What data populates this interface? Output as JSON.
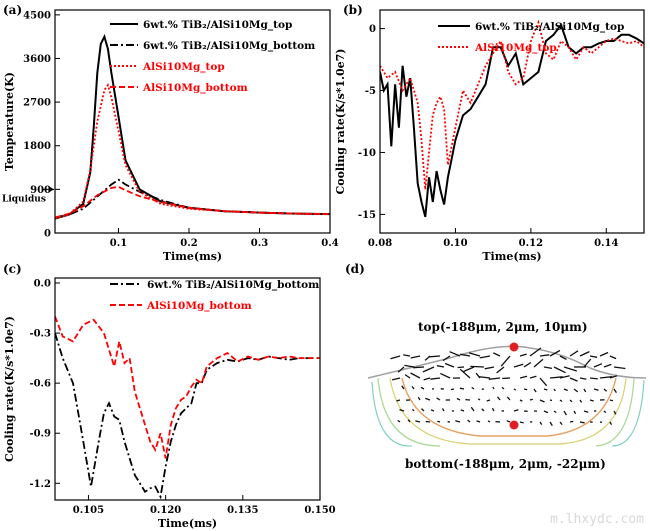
{
  "watermark": "m.lhxydc.com",
  "chart_data": [
    {
      "panel": "(a)",
      "type": "line",
      "xlabel": "Time(ms)",
      "ylabel": "Temperature(K)",
      "xlim": [
        0.01,
        0.4
      ],
      "ylim": [
        0,
        4600
      ],
      "xticks": [
        "0.1",
        "0.2",
        "0.3",
        "0.4"
      ],
      "yticks": [
        "0",
        "900",
        "1800",
        "2700",
        "3600",
        "4500"
      ],
      "annotation": "Liquidus",
      "annotation_value": 900,
      "legend_position": "top-right",
      "series": [
        {
          "name": "6wt.% TiB₂/AlSi10Mg_top",
          "color": "#000000",
          "dash": "solid",
          "x": [
            0.01,
            0.03,
            0.05,
            0.06,
            0.065,
            0.07,
            0.075,
            0.08,
            0.085,
            0.09,
            0.1,
            0.11,
            0.13,
            0.16,
            0.2,
            0.25,
            0.3,
            0.35,
            0.4
          ],
          "y": [
            300,
            380,
            600,
            1250,
            2200,
            3300,
            3900,
            4050,
            3800,
            3300,
            2400,
            1500,
            900,
            650,
            520,
            450,
            420,
            400,
            390
          ]
        },
        {
          "name": "6wt.% TiB₂/AlSi10Mg_bottom",
          "color": "#000000",
          "dash": "dashdot",
          "x": [
            0.01,
            0.03,
            0.05,
            0.07,
            0.09,
            0.1,
            0.11,
            0.13,
            0.16,
            0.2,
            0.25,
            0.3,
            0.35,
            0.4
          ],
          "y": [
            320,
            380,
            500,
            750,
            1000,
            1100,
            1000,
            850,
            680,
            520,
            450,
            420,
            400,
            390
          ]
        },
        {
          "name": "AlSi10Mg_top",
          "color": "#ff0000",
          "dash": "dotted",
          "x": [
            0.01,
            0.03,
            0.05,
            0.06,
            0.07,
            0.08,
            0.085,
            0.09,
            0.1,
            0.11,
            0.13,
            0.16,
            0.2,
            0.25,
            0.3,
            0.35,
            0.4
          ],
          "y": [
            300,
            380,
            650,
            1300,
            2300,
            2950,
            3050,
            2800,
            2100,
            1400,
            850,
            600,
            500,
            450,
            420,
            400,
            390
          ]
        },
        {
          "name": "AlSi10Mg_bottom",
          "color": "#ff0000",
          "dash": "dashed",
          "x": [
            0.01,
            0.03,
            0.05,
            0.07,
            0.09,
            0.1,
            0.11,
            0.13,
            0.16,
            0.2,
            0.25,
            0.3,
            0.35,
            0.4
          ],
          "y": [
            320,
            400,
            550,
            780,
            930,
            950,
            880,
            760,
            640,
            520,
            450,
            420,
            400,
            390
          ]
        }
      ]
    },
    {
      "panel": "(b)",
      "type": "line",
      "xlabel": "Time(ms)",
      "ylabel": "Cooling rate(K/s*1.0e7)",
      "xlim": [
        0.08,
        0.15
      ],
      "ylim": [
        -16.5,
        1.5
      ],
      "xticks": [
        "0.08",
        "0.10",
        "0.12",
        "0.14"
      ],
      "yticks": [
        "-15",
        "-10",
        "-5",
        "0"
      ],
      "legend_position": "top-right",
      "series": [
        {
          "name": "6wt.% TiB₂/AlSi10Mg_top",
          "color": "#000000",
          "dash": "solid",
          "x": [
            0.08,
            0.081,
            0.082,
            0.083,
            0.084,
            0.085,
            0.086,
            0.087,
            0.088,
            0.089,
            0.09,
            0.091,
            0.092,
            0.093,
            0.094,
            0.095,
            0.096,
            0.097,
            0.098,
            0.099,
            0.1,
            0.102,
            0.104,
            0.106,
            0.108,
            0.11,
            0.112,
            0.114,
            0.116,
            0.118,
            0.12,
            0.122,
            0.124,
            0.126,
            0.128,
            0.13,
            0.132,
            0.134,
            0.136,
            0.138,
            0.14,
            0.142,
            0.144,
            0.146,
            0.148,
            0.15
          ],
          "y": [
            -3.5,
            -5,
            -4.5,
            -9.5,
            -4.5,
            -8,
            -3,
            -5.5,
            -4,
            -8,
            -12.5,
            -14,
            -15.2,
            -12,
            -14,
            -11.5,
            -13,
            -14.2,
            -12,
            -10.5,
            -9,
            -7,
            -6.5,
            -5.5,
            -4.5,
            -1.5,
            -1.5,
            -3,
            -2,
            -4.5,
            -4,
            -3.5,
            -1,
            -0.5,
            0.3,
            -1.5,
            -2,
            -1.5,
            -1.5,
            -1.2,
            -1,
            -1,
            -0.5,
            -0.5,
            -0.8,
            -1.2
          ]
        },
        {
          "name": "AlSi10Mg_top",
          "color": "#ff0000",
          "dash": "dotted",
          "x": [
            0.08,
            0.082,
            0.084,
            0.086,
            0.088,
            0.09,
            0.091,
            0.092,
            0.093,
            0.094,
            0.095,
            0.096,
            0.097,
            0.098,
            0.1,
            0.102,
            0.104,
            0.106,
            0.108,
            0.11,
            0.112,
            0.114,
            0.116,
            0.118,
            0.12,
            0.122,
            0.124,
            0.126,
            0.128,
            0.13,
            0.132,
            0.134,
            0.136,
            0.138,
            0.14,
            0.142,
            0.144,
            0.146,
            0.148,
            0.15
          ],
          "y": [
            -3,
            -4,
            -3.5,
            -5,
            -4,
            -6,
            -9,
            -13,
            -10,
            -7,
            -6,
            -5.5,
            -6.5,
            -11,
            -8,
            -5,
            -6,
            -4.5,
            -3,
            -2,
            -1,
            -3.5,
            -4.5,
            -4,
            -1,
            0.5,
            -2,
            -2.5,
            -1,
            -1.5,
            -2.5,
            -1.5,
            -2,
            -1.5,
            -1,
            -0.8,
            -1,
            -1.2,
            -1,
            -1.5
          ]
        }
      ]
    },
    {
      "panel": "(c)",
      "type": "line",
      "xlabel": "Time(ms)",
      "ylabel": "Cooling rate(K/s*1.0e7)",
      "xlim": [
        0.0985,
        0.15
      ],
      "ylim": [
        -1.3,
        0.03
      ],
      "xticks": [
        "0.105",
        "0.120",
        "0.135",
        "0.150"
      ],
      "yticks": [
        "0.0",
        "-0.3",
        "-0.6",
        "-0.9",
        "-1.2"
      ],
      "legend_position": "top-right",
      "series": [
        {
          "name": "6wt.% TiB₂/AlSi10Mg_bottom",
          "color": "#000000",
          "dash": "dashdot",
          "x": [
            0.0985,
            0.1,
            0.102,
            0.104,
            0.1055,
            0.107,
            0.108,
            0.109,
            0.11,
            0.111,
            0.112,
            0.113,
            0.114,
            0.115,
            0.116,
            0.117,
            0.118,
            0.119,
            0.12,
            0.121,
            0.122,
            0.123,
            0.124,
            0.125,
            0.126,
            0.127,
            0.128,
            0.129,
            0.13,
            0.132,
            0.134,
            0.136,
            0.138,
            0.14,
            0.142,
            0.144,
            0.146,
            0.148,
            0.15
          ],
          "y": [
            -0.3,
            -0.45,
            -0.6,
            -0.95,
            -1.22,
            -0.95,
            -0.78,
            -0.72,
            -0.8,
            -0.82,
            -0.95,
            -1.05,
            -1.15,
            -1.2,
            -1.25,
            -1.23,
            -1.22,
            -1.28,
            -1.1,
            -0.95,
            -0.85,
            -0.78,
            -0.75,
            -0.72,
            -0.6,
            -0.6,
            -0.52,
            -0.5,
            -0.48,
            -0.46,
            -0.47,
            -0.45,
            -0.46,
            -0.44,
            -0.45,
            -0.46,
            -0.45,
            -0.45,
            -0.45
          ]
        },
        {
          "name": "AlSi10Mg_bottom",
          "color": "#ff0000",
          "dash": "dashed",
          "x": [
            0.0985,
            0.1,
            0.102,
            0.104,
            0.106,
            0.108,
            0.11,
            0.111,
            0.112,
            0.113,
            0.114,
            0.115,
            0.116,
            0.117,
            0.118,
            0.119,
            0.12,
            0.121,
            0.122,
            0.123,
            0.124,
            0.125,
            0.126,
            0.127,
            0.128,
            0.13,
            0.132,
            0.134,
            0.136,
            0.138,
            0.14,
            0.142,
            0.144,
            0.146,
            0.148,
            0.15
          ],
          "y": [
            -0.2,
            -0.32,
            -0.35,
            -0.25,
            -0.22,
            -0.3,
            -0.5,
            -0.35,
            -0.48,
            -0.45,
            -0.65,
            -0.75,
            -0.85,
            -0.95,
            -1.0,
            -0.9,
            -1.05,
            -0.85,
            -0.75,
            -0.7,
            -0.68,
            -0.62,
            -0.58,
            -0.6,
            -0.5,
            -0.45,
            -0.42,
            -0.47,
            -0.44,
            -0.46,
            -0.44,
            -0.45,
            -0.44,
            -0.45,
            -0.45,
            -0.45
          ]
        }
      ]
    }
  ],
  "panel_d": {
    "label": "(d)",
    "top_label": "top(-188μm, 2μm, 10μm)",
    "bottom_label": "bottom(-188μm, 2μm, -22μm)",
    "marker_color": "#e02020",
    "contour_colors": [
      "#e8a060",
      "#d8d070",
      "#a8d890",
      "#80d0c0"
    ]
  }
}
